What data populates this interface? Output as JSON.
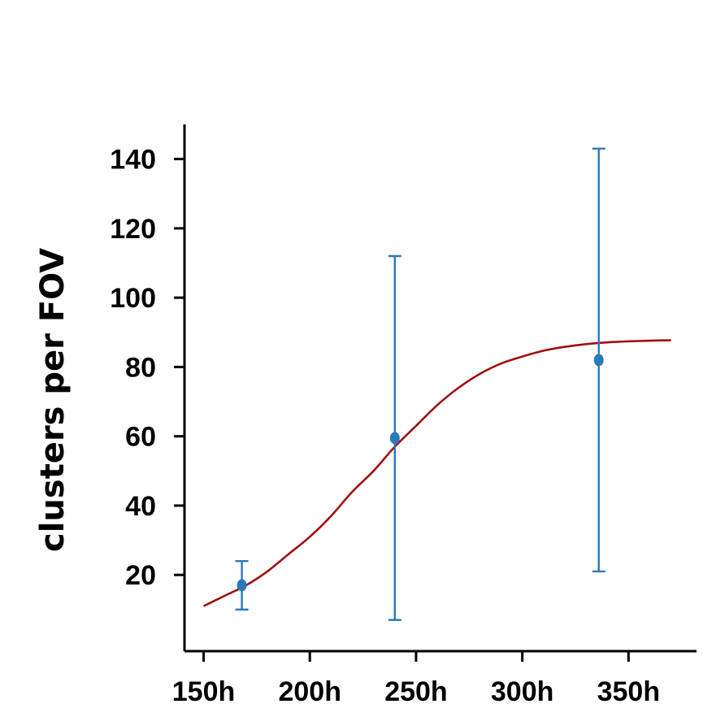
{
  "chart_data": {
    "type": "scatter",
    "title": "",
    "xlabel": "",
    "ylabel": "clusters per FOV",
    "xlim": [
      141,
      382
    ],
    "ylim": [
      -2,
      150
    ],
    "x_ticks": [
      150,
      200,
      250,
      300,
      350
    ],
    "x_tick_labels": [
      "150h",
      "200h",
      "250h",
      "300h",
      "350h"
    ],
    "y_ticks": [
      20,
      40,
      60,
      80,
      100,
      120,
      140
    ],
    "y_tick_labels": [
      "20",
      "40",
      "60",
      "80",
      "100",
      "120",
      "140"
    ],
    "grid": false,
    "series": [
      {
        "kind": "points_with_error_bars",
        "color": "#2a7ab8",
        "points": [
          {
            "x": 168,
            "y": 17,
            "y_low": 10,
            "y_high": 24
          },
          {
            "x": 240,
            "y": 59.5,
            "y_low": 7,
            "y_high": 112
          },
          {
            "x": 336,
            "y": 82,
            "y_low": 21,
            "y_high": 143
          }
        ]
      },
      {
        "kind": "fit_curve",
        "color": "#a01010",
        "x": [
          150,
          160,
          170,
          180,
          190,
          200,
          210,
          220,
          230,
          240,
          250,
          260,
          270,
          280,
          290,
          300,
          310,
          320,
          330,
          340,
          350,
          360,
          370
        ],
        "y": [
          11,
          14,
          17,
          21,
          26,
          31,
          37,
          44,
          50,
          57,
          63,
          69,
          74,
          78,
          81,
          83,
          84.7,
          85.8,
          86.6,
          87.1,
          87.4,
          87.6,
          87.7
        ]
      }
    ]
  }
}
